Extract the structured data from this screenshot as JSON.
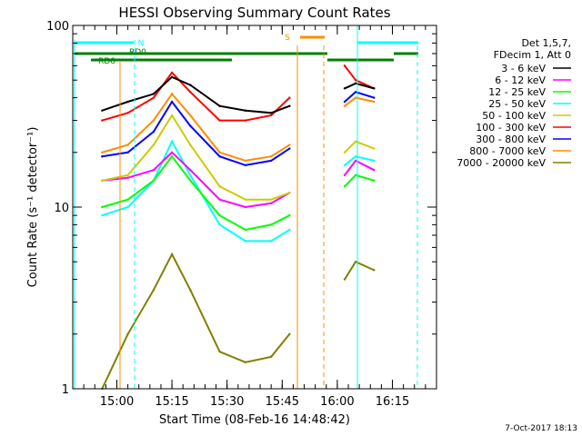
{
  "chart_data": {
    "type": "line",
    "title": "HESSI Observing Summary Count Rates",
    "xlabel": "Start Time (08-Feb-16 14:48:42)",
    "ylabel": "Count Rate (s⁻¹ detector⁻¹)",
    "y_scale": "log",
    "ylim": [
      1,
      100
    ],
    "xlim": [
      "14:48",
      "16:27"
    ],
    "x_ticks": [
      "15:00",
      "15:15",
      "15:30",
      "15:45",
      "16:00",
      "16:15"
    ],
    "y_ticks": [
      "1",
      "10",
      "100"
    ],
    "legend_header": [
      "Det 1,5,7,",
      "FDecim 1, Att 0"
    ],
    "legend_position": "right",
    "timestamp": "7-Oct-2017 18:13",
    "series": [
      {
        "name": "3 - 6 keV",
        "color": "#000000",
        "x": [
          "14:56",
          "15:03",
          "15:10",
          "15:15",
          "15:20",
          "15:28",
          "15:35",
          "15:42",
          "15:47",
          "16:02",
          "16:05",
          "16:10"
        ],
        "values": [
          34,
          38,
          42,
          52,
          47,
          36,
          34,
          33,
          36,
          45,
          48,
          45
        ]
      },
      {
        "name": "6 - 12 keV",
        "color": "#ff00ff",
        "x": [
          "14:56",
          "15:03",
          "15:10",
          "15:15",
          "15:20",
          "15:28",
          "15:35",
          "15:42",
          "15:47",
          "16:02",
          "16:05",
          "16:10"
        ],
        "values": [
          14,
          14.5,
          16,
          20,
          16,
          11,
          10,
          10.5,
          12,
          15,
          18,
          16
        ]
      },
      {
        "name": "12 - 25 keV",
        "color": "#00ff00",
        "x": [
          "14:56",
          "15:03",
          "15:10",
          "15:15",
          "15:20",
          "15:28",
          "15:35",
          "15:42",
          "15:47",
          "16:02",
          "16:05",
          "16:10"
        ],
        "values": [
          10,
          11,
          14,
          19,
          14,
          9,
          7.5,
          8,
          9,
          13,
          15,
          14
        ]
      },
      {
        "name": "25 - 50 keV",
        "color": "#00ffff",
        "x": [
          "14:56",
          "15:03",
          "15:10",
          "15:15",
          "15:20",
          "15:28",
          "15:35",
          "15:42",
          "15:47",
          "16:02",
          "16:05",
          "16:10"
        ],
        "values": [
          9,
          10,
          14,
          23,
          15,
          8,
          6.5,
          6.5,
          7.5,
          17,
          19,
          18
        ]
      },
      {
        "name": "50 - 100 keV",
        "color": "#cccc00",
        "x": [
          "14:56",
          "15:03",
          "15:10",
          "15:15",
          "15:20",
          "15:28",
          "15:35",
          "15:42",
          "15:47",
          "16:02",
          "16:05",
          "16:10"
        ],
        "values": [
          14,
          15,
          22,
          32,
          22,
          13,
          11,
          11,
          12,
          20,
          23,
          21
        ]
      },
      {
        "name": "100 - 300 keV",
        "color": "#ff0000",
        "x": [
          "14:56",
          "15:03",
          "15:10",
          "15:15",
          "15:20",
          "15:28",
          "15:35",
          "15:42",
          "15:47",
          "16:02",
          "16:05",
          "16:10"
        ],
        "values": [
          30,
          33,
          40,
          55,
          43,
          30,
          30,
          32,
          40,
          60,
          50,
          45
        ]
      },
      {
        "name": "300 - 800 keV",
        "color": "#0000ff",
        "x": [
          "14:56",
          "15:03",
          "15:10",
          "15:15",
          "15:20",
          "15:28",
          "15:35",
          "15:42",
          "15:47",
          "16:02",
          "16:05",
          "16:10"
        ],
        "values": [
          19,
          20,
          26,
          38,
          28,
          19,
          17,
          18,
          21,
          38,
          43,
          40
        ]
      },
      {
        "name": "800 - 7000 keV",
        "color": "#ff8c00",
        "x": [
          "14:56",
          "15:03",
          "15:10",
          "15:15",
          "15:20",
          "15:28",
          "15:35",
          "15:42",
          "15:47",
          "16:02",
          "16:05",
          "16:10"
        ],
        "values": [
          20,
          22,
          30,
          42,
          32,
          20,
          18,
          19,
          22,
          36,
          40,
          38
        ]
      },
      {
        "name": "7000 - 20000 keV",
        "color": "#808000",
        "x": [
          "14:56",
          "15:03",
          "15:10",
          "15:15",
          "15:20",
          "15:28",
          "15:35",
          "15:42",
          "15:47",
          "16:02",
          "16:05",
          "16:10"
        ],
        "values": [
          1.0,
          2.0,
          3.5,
          5.5,
          3.5,
          1.6,
          1.4,
          1.5,
          2.0,
          4.0,
          5.0,
          4.5
        ]
      }
    ],
    "annotations": [
      {
        "label": "N",
        "color": "#00ffff"
      },
      {
        "label": "RD0",
        "color": "#008000"
      },
      {
        "label": "RD6",
        "color": "#008000"
      },
      {
        "label": "S",
        "color": "#ff8c00"
      }
    ]
  }
}
